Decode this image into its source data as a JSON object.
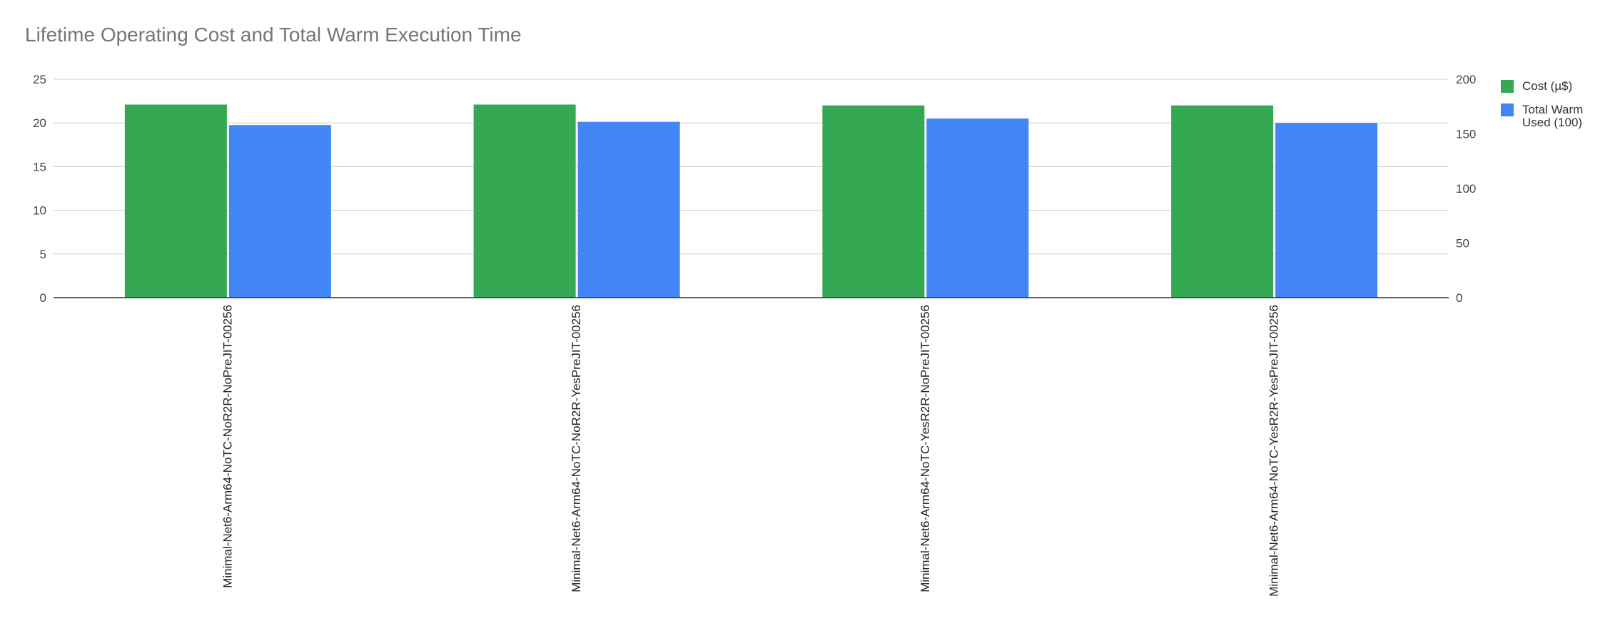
{
  "chart_data": {
    "type": "bar",
    "title": "Lifetime Operating Cost and Total Warm Execution Time",
    "categories": [
      "Minimal-Net6-Arm64-NoTC-NoR2R-NoPreJIT-00256",
      "Minimal-Net6-Arm64-NoTC-NoR2R-YesPreJIT-00256",
      "Minimal-Net6-Arm64-NoTC-YesR2R-NoPreJIT-00256",
      "Minimal-Net6-Arm64-NoTC-YesR2R-YesPreJIT-00256"
    ],
    "series": [
      {
        "name": "Cost (µ$)",
        "axis": "left",
        "color": "#34a853",
        "values": [
          22.1,
          22.1,
          22.0,
          22.0
        ]
      },
      {
        "name": "Total Warm Used (100)",
        "axis": "right",
        "color": "#4285f4",
        "values": [
          158,
          161,
          164,
          160
        ]
      }
    ],
    "y_left": {
      "ylim": [
        0,
        25
      ],
      "ticks": [
        "0",
        "5",
        "10",
        "15",
        "20",
        "25"
      ]
    },
    "y_right": {
      "ylim": [
        0,
        200
      ],
      "ticks": [
        "0",
        "50",
        "100",
        "150",
        "200"
      ]
    },
    "xlabel": "",
    "ylabel": "",
    "grid": true,
    "legend_position": "right",
    "colors": {
      "grid": "#cccccc",
      "axis": "#333333",
      "tick_text": "#444444",
      "title": "#757575"
    }
  }
}
